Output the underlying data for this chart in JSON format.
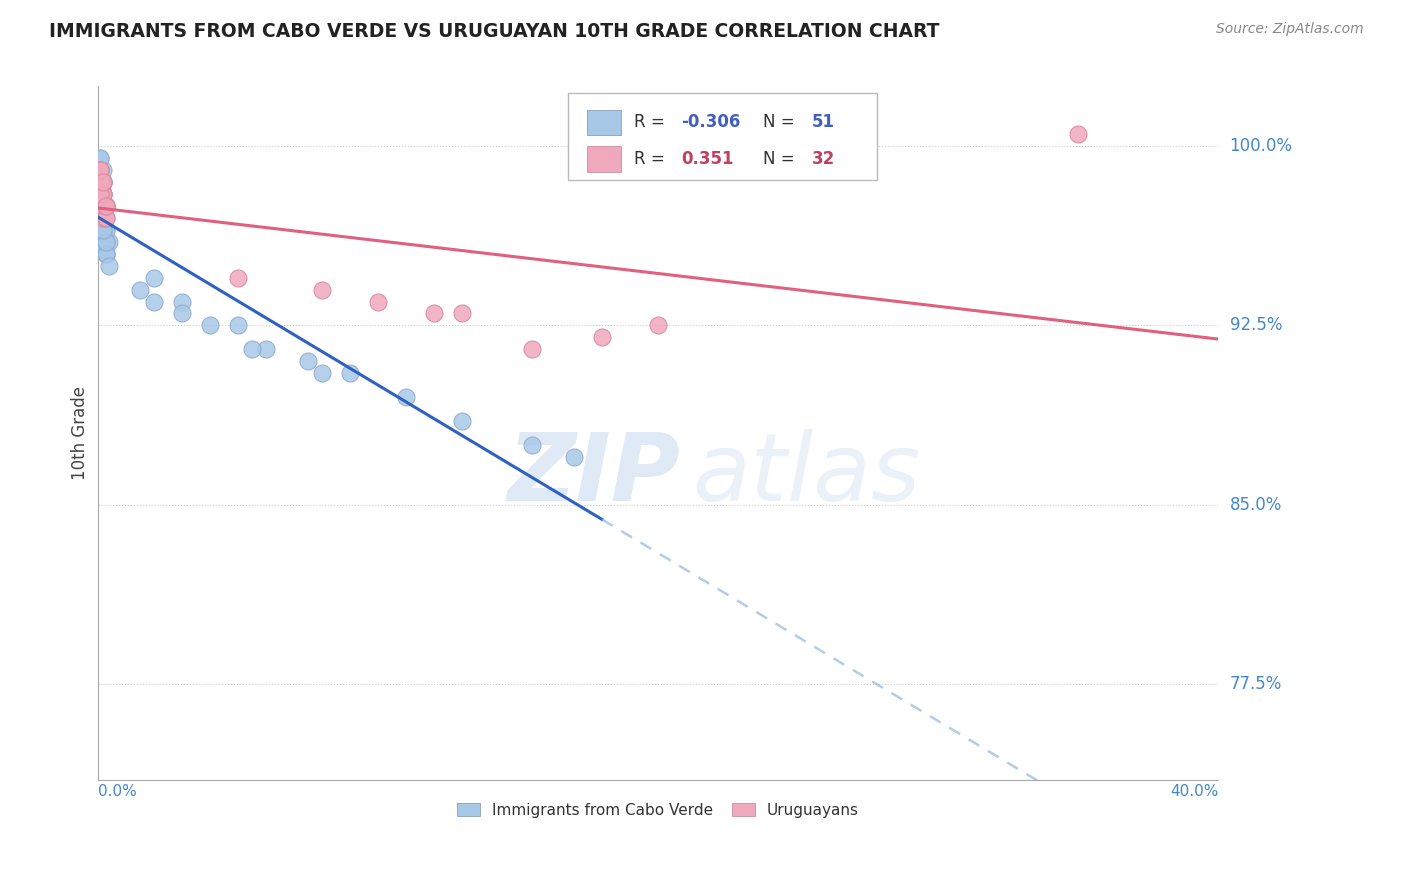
{
  "title": "IMMIGRANTS FROM CABO VERDE VS URUGUAYAN 10TH GRADE CORRELATION CHART",
  "source": "Source: ZipAtlas.com",
  "ylabel": "10th Grade",
  "xlim": [
    0.0,
    0.4
  ],
  "ylim": [
    0.735,
    1.025
  ],
  "blue_R": -0.306,
  "blue_N": 51,
  "pink_R": 0.351,
  "pink_N": 32,
  "blue_color": "#A8C8E8",
  "pink_color": "#F0A8BC",
  "blue_line_color": "#3060C0",
  "pink_line_color": "#E06080",
  "blue_dash_color": "#90B8E0",
  "watermark_zip": "ZIP",
  "watermark_atlas": "atlas",
  "legend_blue_label": "Immigrants from Cabo Verde",
  "legend_pink_label": "Uruguayans",
  "blue_scatter_x": [
    0.002,
    0.001,
    0.003,
    0.001,
    0.002,
    0.003,
    0.004,
    0.002,
    0.001,
    0.003,
    0.002,
    0.001,
    0.002,
    0.003,
    0.001,
    0.002,
    0.001,
    0.003,
    0.002,
    0.001,
    0.002,
    0.003,
    0.001,
    0.002,
    0.003,
    0.002,
    0.001,
    0.003,
    0.002,
    0.004,
    0.001,
    0.002,
    0.003,
    0.001,
    0.002,
    0.015,
    0.02,
    0.03,
    0.04,
    0.05,
    0.06,
    0.075,
    0.09,
    0.11,
    0.13,
    0.155,
    0.17,
    0.03,
    0.055,
    0.02,
    0.08
  ],
  "blue_scatter_y": [
    0.985,
    0.995,
    0.975,
    0.97,
    0.98,
    0.965,
    0.96,
    0.99,
    0.985,
    0.975,
    0.96,
    0.97,
    0.975,
    0.955,
    0.995,
    0.965,
    0.975,
    0.955,
    0.985,
    0.96,
    0.97,
    0.96,
    0.99,
    0.975,
    0.955,
    0.98,
    0.975,
    0.965,
    0.97,
    0.95,
    0.985,
    0.975,
    0.96,
    0.985,
    0.965,
    0.94,
    0.945,
    0.935,
    0.925,
    0.925,
    0.915,
    0.91,
    0.905,
    0.895,
    0.885,
    0.875,
    0.87,
    0.93,
    0.915,
    0.935,
    0.905
  ],
  "pink_scatter_x": [
    0.001,
    0.002,
    0.001,
    0.003,
    0.002,
    0.001,
    0.002,
    0.003,
    0.002,
    0.001,
    0.002,
    0.001,
    0.003,
    0.002,
    0.001,
    0.003,
    0.002,
    0.001,
    0.003,
    0.002,
    0.05,
    0.08,
    0.1,
    0.12,
    0.13,
    0.155,
    0.18,
    0.2,
    0.001,
    0.002,
    0.003,
    0.35
  ],
  "pink_scatter_y": [
    0.98,
    0.97,
    0.99,
    0.975,
    0.975,
    0.985,
    0.98,
    0.975,
    0.985,
    0.99,
    0.975,
    0.985,
    0.97,
    0.98,
    0.98,
    0.97,
    0.985,
    0.99,
    0.975,
    0.98,
    0.945,
    0.94,
    0.935,
    0.93,
    0.93,
    0.915,
    0.92,
    0.925,
    0.98,
    0.985,
    0.975,
    1.005
  ],
  "ytick_vals": [
    1.0,
    0.925,
    0.85,
    0.775
  ],
  "ytick_labels": [
    "100.0%",
    "92.5%",
    "85.0%",
    "77.5%"
  ],
  "xtick_left_label": "0.0%",
  "xtick_right_label": "40.0%",
  "grid_color": "#CCCCCC",
  "background_color": "#FFFFFF",
  "axis_color": "#AAAAAA",
  "tick_label_color": "#4488CC",
  "title_color": "#222222",
  "source_color": "#888888",
  "ylabel_color": "#444444"
}
